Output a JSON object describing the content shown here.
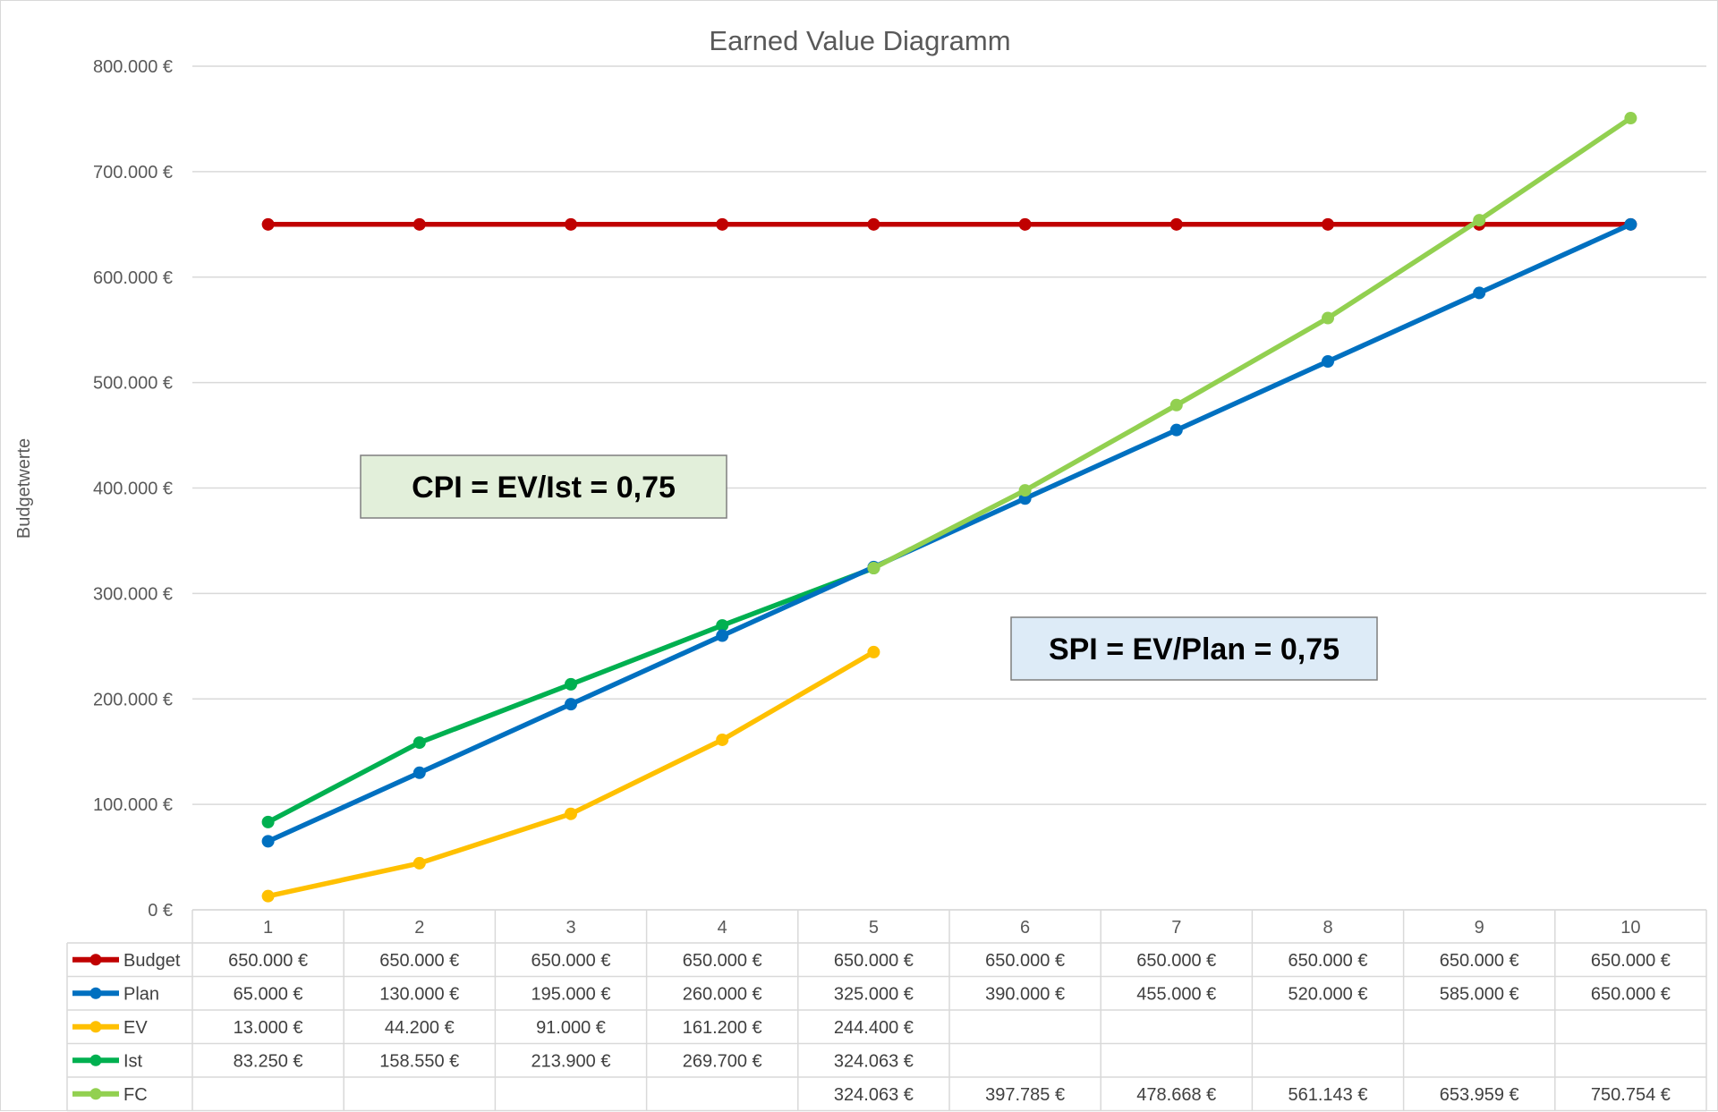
{
  "chart_data": {
    "type": "line",
    "title": "Earned Value Diagramm",
    "ylabel": "Budgetwerte",
    "ylim": [
      0,
      800000
    ],
    "yticks": [
      0,
      100000,
      200000,
      300000,
      400000,
      500000,
      600000,
      700000,
      800000
    ],
    "ytick_labels": [
      "0 €",
      "100.000 €",
      "200.000 €",
      "300.000 €",
      "400.000 €",
      "500.000 €",
      "600.000 €",
      "700.000 €",
      "800.000 €"
    ],
    "categories": [
      "1",
      "2",
      "3",
      "4",
      "5",
      "6",
      "7",
      "8",
      "9",
      "10"
    ],
    "grid": true,
    "legend": "data-table",
    "series": [
      {
        "name": "Budget",
        "color": "#c00000",
        "values": [
          650000,
          650000,
          650000,
          650000,
          650000,
          650000,
          650000,
          650000,
          650000,
          650000
        ],
        "labels": [
          "650.000 €",
          "650.000 €",
          "650.000 €",
          "650.000 €",
          "650.000 €",
          "650.000 €",
          "650.000 €",
          "650.000 €",
          "650.000 €",
          "650.000 €"
        ]
      },
      {
        "name": "Plan",
        "color": "#0070c0",
        "values": [
          65000,
          130000,
          195000,
          260000,
          325000,
          390000,
          455000,
          520000,
          585000,
          650000
        ],
        "labels": [
          "65.000 €",
          "130.000 €",
          "195.000 €",
          "260.000 €",
          "325.000 €",
          "390.000 €",
          "455.000 €",
          "520.000 €",
          "585.000 €",
          "650.000 €"
        ]
      },
      {
        "name": "EV",
        "color": "#ffc000",
        "values": [
          13000,
          44200,
          91000,
          161200,
          244400,
          null,
          null,
          null,
          null,
          null
        ],
        "labels": [
          "13.000 €",
          "44.200 €",
          "91.000 €",
          "161.200 €",
          "244.400 €",
          "",
          "",
          "",
          "",
          ""
        ]
      },
      {
        "name": "Ist",
        "color": "#00b050",
        "values": [
          83250,
          158550,
          213900,
          269700,
          324063,
          null,
          null,
          null,
          null,
          null
        ],
        "labels": [
          "83.250 €",
          "158.550 €",
          "213.900 €",
          "269.700 €",
          "324.063 €",
          "",
          "",
          "",
          "",
          ""
        ]
      },
      {
        "name": "FC",
        "color": "#92d050",
        "values": [
          null,
          null,
          null,
          null,
          324063,
          397785,
          478668,
          561143,
          653959,
          750754
        ],
        "labels": [
          "",
          "",
          "",
          "",
          "324.063 €",
          "397.785 €",
          "478.668 €",
          "561.143 €",
          "653.959 €",
          "750.754 €"
        ]
      }
    ],
    "annotations": [
      {
        "text": "CPI = EV/Ist = 0,75",
        "fill": "#e2efda"
      },
      {
        "text": "SPI = EV/Plan = 0,75",
        "fill": "#ddebf7"
      }
    ]
  }
}
